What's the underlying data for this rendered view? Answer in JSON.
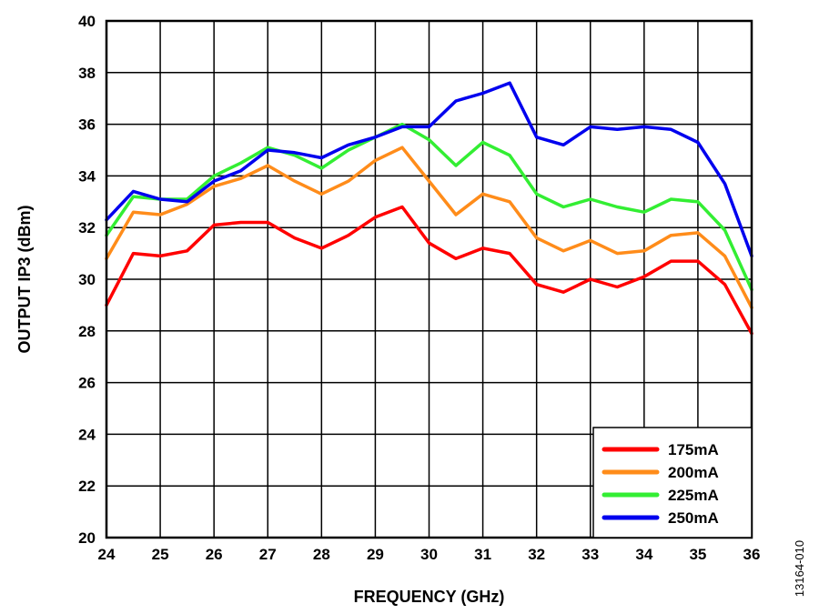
{
  "chart_data": {
    "type": "line",
    "xlabel": "FREQUENCY (GHz)",
    "ylabel": "OUTPUT IP3 (dBm)",
    "xlim": [
      24,
      36
    ],
    "ylim": [
      20,
      40
    ],
    "xticks": [
      24,
      25,
      26,
      27,
      28,
      29,
      30,
      31,
      32,
      33,
      34,
      35,
      36
    ],
    "yticks": [
      20,
      22,
      24,
      26,
      28,
      30,
      32,
      34,
      36,
      38,
      40
    ],
    "grid": true,
    "legend_position": "bottom-right",
    "x": [
      24,
      24.5,
      25,
      25.5,
      26,
      26.5,
      27,
      27.5,
      28,
      28.5,
      29,
      29.5,
      30,
      30.5,
      31,
      31.5,
      32,
      32.5,
      33,
      33.5,
      34,
      34.5,
      35,
      35.5,
      36
    ],
    "series": [
      {
        "name": "175mA",
        "color": "#ff0000",
        "values": [
          29.0,
          31.0,
          30.9,
          31.1,
          32.1,
          32.2,
          32.2,
          31.6,
          31.2,
          31.7,
          32.4,
          32.8,
          31.4,
          30.8,
          31.2,
          31.0,
          29.8,
          29.5,
          30.0,
          29.7,
          30.1,
          30.7,
          30.7,
          29.8,
          27.9
        ]
      },
      {
        "name": "200mA",
        "color": "#ff8c1a",
        "values": [
          30.8,
          32.6,
          32.5,
          32.9,
          33.6,
          33.9,
          34.4,
          33.8,
          33.3,
          33.8,
          34.6,
          35.1,
          33.8,
          32.5,
          33.3,
          33.0,
          31.6,
          31.1,
          31.5,
          31.0,
          31.1,
          31.7,
          31.8,
          30.9,
          28.9
        ]
      },
      {
        "name": "225mA",
        "color": "#33ee33",
        "values": [
          31.7,
          33.2,
          33.1,
          33.1,
          34.0,
          34.5,
          35.1,
          34.8,
          34.3,
          35.0,
          35.5,
          36.0,
          35.4,
          34.4,
          35.3,
          34.8,
          33.3,
          32.8,
          33.1,
          32.8,
          32.6,
          33.1,
          33.0,
          31.9,
          29.6
        ]
      },
      {
        "name": "250mA",
        "color": "#0000ee",
        "values": [
          32.3,
          33.4,
          33.1,
          33.0,
          33.8,
          34.2,
          35.0,
          34.9,
          34.7,
          35.2,
          35.5,
          35.9,
          35.9,
          36.9,
          37.2,
          37.6,
          35.5,
          35.2,
          35.9,
          35.8,
          35.9,
          35.8,
          35.3,
          33.7,
          30.9
        ]
      }
    ],
    "annotation": "13164-010"
  }
}
